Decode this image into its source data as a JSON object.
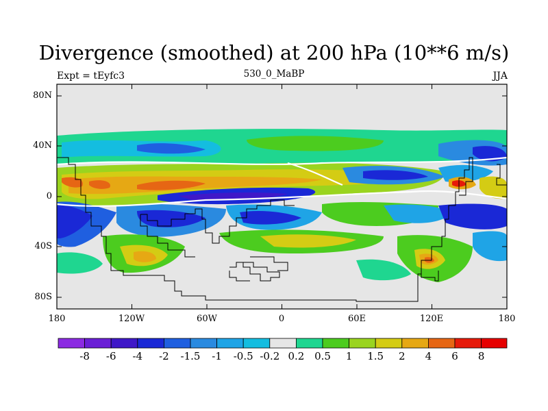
{
  "title": "Divergence (smoothed) at 200 hPa (10**6 m/s)",
  "subtitle_left": "Expt = tEyfc3",
  "subtitle_center": "530_0_MaBP",
  "subtitle_right": "JJA",
  "lat_labels": [
    "80N",
    "40N",
    "0",
    "40S",
    "80S"
  ],
  "lon_labels": [
    "180",
    "120W",
    "60W",
    "0",
    "60E",
    "120E",
    "180"
  ],
  "colorbar": {
    "labels": [
      "-8",
      "-6",
      "-4",
      "-2",
      "-1.5",
      "-1",
      "-0.5",
      "-0.2",
      "0.2",
      "0.5",
      "1",
      "1.5",
      "2",
      "4",
      "6",
      "8"
    ],
    "colors": [
      "#8b2be2",
      "#6a1fd6",
      "#3f18c8",
      "#1a28d6",
      "#1f5fe0",
      "#2a8ae0",
      "#1fa4e6",
      "#14bde0",
      "#e6e6e6",
      "#1fd690",
      "#4ccc1f",
      "#9ad41f",
      "#d4cc14",
      "#e6a814",
      "#e66614",
      "#e61a0a",
      "#e60000"
    ]
  },
  "chart_data": {
    "type": "heatmap",
    "title": "Divergence (smoothed) at 200 hPa (10**6 m/s)",
    "variable": "Divergence (smoothed)",
    "level": "200 hPa",
    "units": "10**6 m/s",
    "experiment": "tEyfc3",
    "case": "530_0_MaBP",
    "season": "JJA",
    "x_range": [
      -180,
      180
    ],
    "y_range": [
      -90,
      90
    ],
    "x_ticks": [
      "180",
      "120W",
      "60W",
      "0",
      "60E",
      "120E",
      "180"
    ],
    "y_ticks": [
      "80N",
      "40N",
      "0",
      "40S",
      "80S"
    ],
    "contour_levels": [
      -8,
      -6,
      -4,
      -2,
      -1.5,
      -1,
      -0.5,
      -0.2,
      0.2,
      0.5,
      1,
      1.5,
      2,
      4,
      6,
      8
    ]
  }
}
